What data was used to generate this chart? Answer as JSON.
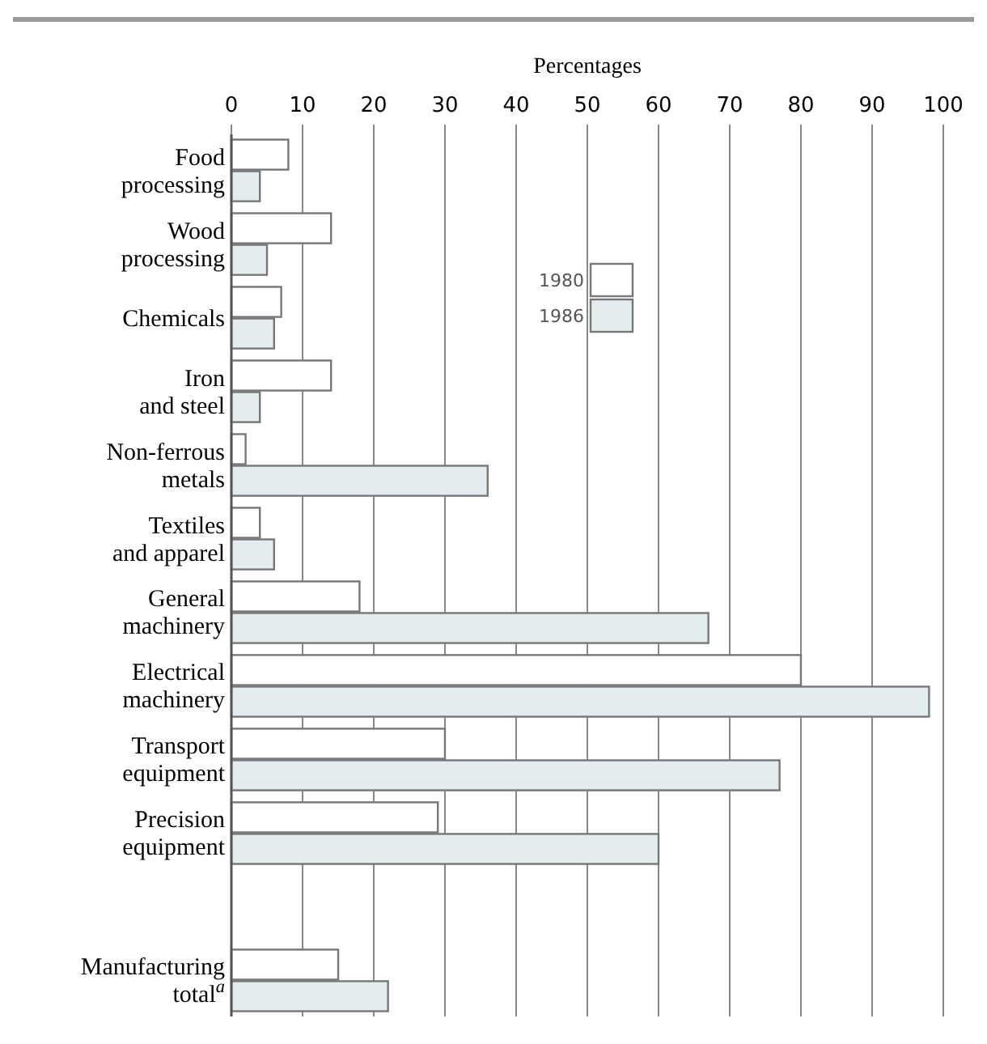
{
  "chart_data": {
    "type": "bar",
    "orientation": "horizontal",
    "xlabel": "Percentages",
    "categories": [
      "Food\nprocessing",
      "Wood\nprocessing",
      "Chemicals",
      "Iron\nand steel",
      "Non-ferrous\nmetals",
      "Textiles\nand apparel",
      "General\nmachinery",
      "Electrical\nmachinery",
      "Transport\nequipment",
      "Precision\nequipment",
      null,
      "Manufacturing\ntotal$^{a}$"
    ],
    "series": [
      {
        "name": "1980",
        "color": "#ffffff",
        "values": [
          8,
          14,
          7,
          14,
          2,
          4,
          18,
          80,
          30,
          29,
          null,
          15
        ]
      },
      {
        "name": "1986",
        "color": "#e3edf0",
        "values": [
          4,
          5,
          6,
          4,
          36,
          6,
          67,
          98,
          77,
          60,
          null,
          22
        ]
      }
    ],
    "xlim": [
      0,
      100
    ],
    "xticks": [
      0,
      10,
      20,
      30,
      40,
      50,
      60,
      70,
      80,
      90,
      100
    ],
    "grid": "x",
    "legend": "top right"
  }
}
